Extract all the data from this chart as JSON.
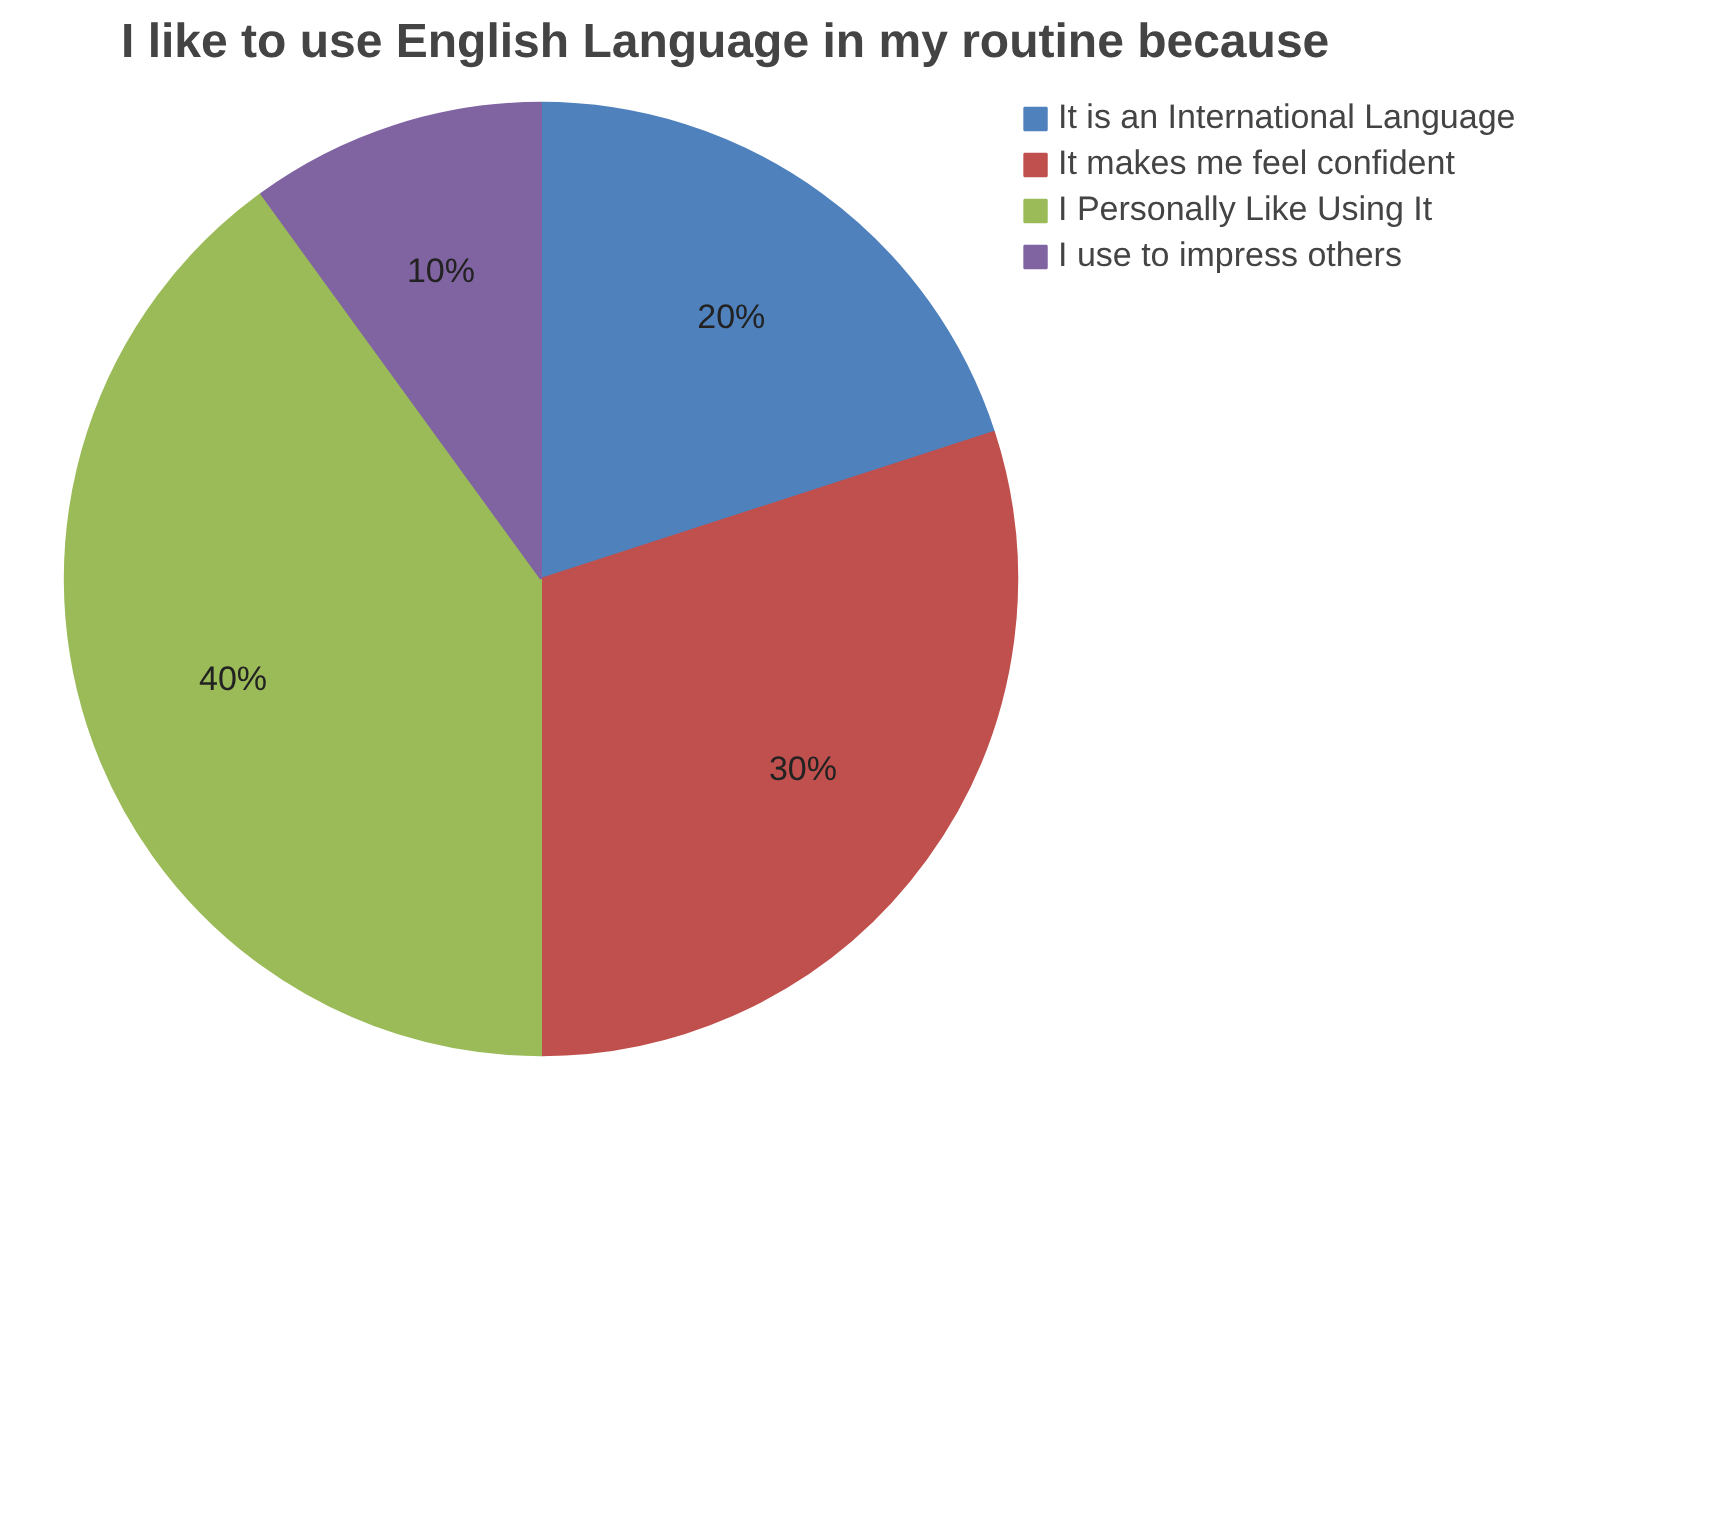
{
  "chart_data": {
    "type": "pie",
    "title": "I like to use English Language in my routine because",
    "categories": [
      "It is an International Language",
      "It makes me feel confident",
      "I Personally Like Using It",
      "I use to impress others"
    ],
    "values": [
      20,
      30,
      40,
      10
    ],
    "value_labels": [
      "20%",
      "30%",
      "40%",
      "10%"
    ],
    "colors": [
      "#4f81bd",
      "#c0504d",
      "#9bbb59",
      "#8064a2"
    ],
    "legend": "right"
  }
}
